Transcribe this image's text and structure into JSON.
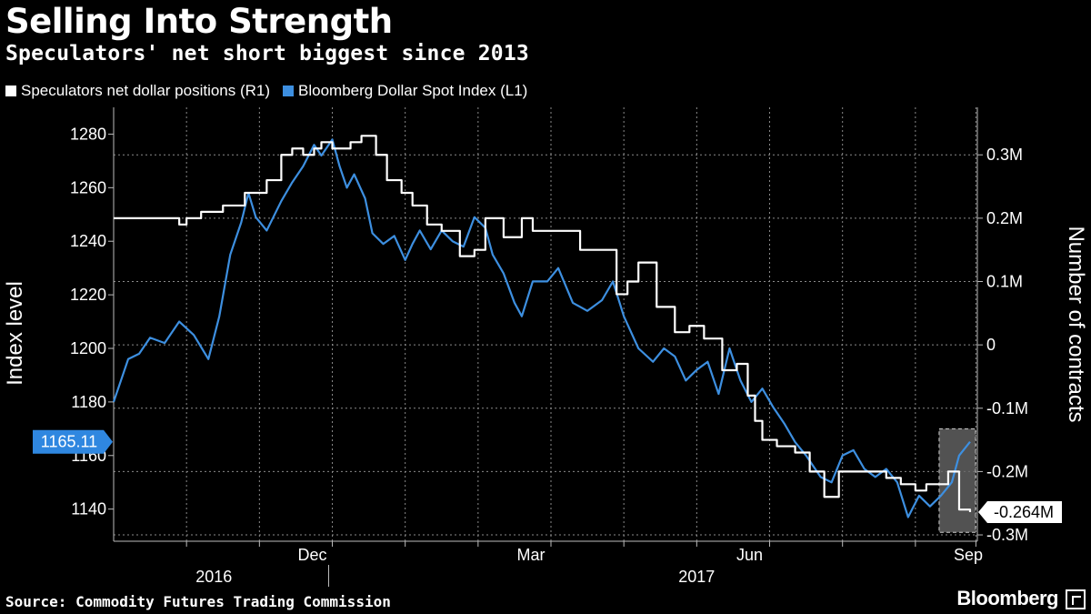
{
  "chart_data": {
    "type": "line",
    "title": "Selling Into Strength",
    "subtitle": "Speculators' net short biggest since 2013",
    "source": "Source: Commodity Futures Trading Commission",
    "brand": "Bloomberg",
    "colors": {
      "background": "#000000",
      "series_usd": "#ffffff",
      "series_index": "#3d8fe0"
    },
    "legend": [
      {
        "name": "Speculators net dollar positions (R1)",
        "color": "#ffffff"
      },
      {
        "name": "Bloomberg Dollar Spot Index (L1)",
        "color": "#3d8fe0"
      }
    ],
    "left_axis": {
      "label": "Index level",
      "ylim": [
        1128,
        1290
      ],
      "ticks": [
        "1140",
        "1160",
        "1180",
        "1200",
        "1220",
        "1240",
        "1260",
        "1280"
      ]
    },
    "right_axis": {
      "label": "Number of contracts",
      "ylim": [
        -0.31,
        0.375
      ],
      "ticks": [
        {
          "v": 0.3,
          "t": "0.3M"
        },
        {
          "v": 0.2,
          "t": "0.2M"
        },
        {
          "v": 0.1,
          "t": "0.1M"
        },
        {
          "v": 0,
          "t": "0"
        },
        {
          "v": -0.1,
          "t": "-0.1M"
        },
        {
          "v": -0.2,
          "t": "-0.2M"
        },
        {
          "v": -0.3,
          "t": "-0.3M"
        }
      ]
    },
    "x_range": [
      0,
      11.85
    ],
    "x_ticks": [
      {
        "m": 3,
        "t": "Dec"
      },
      {
        "m": 6,
        "t": "Mar"
      },
      {
        "m": 9,
        "t": "Jun"
      },
      {
        "m": 12,
        "t": "Sep"
      }
    ],
    "x_gridlines": [
      1,
      2,
      3,
      4,
      5,
      6,
      7,
      8,
      9,
      10,
      11,
      11.83
    ],
    "years": [
      {
        "m": 1.5,
        "t": "2016"
      },
      {
        "m": 7.5,
        "t": "2017"
      }
    ],
    "year_divider": 2.95,
    "series": [
      {
        "name": "Bloomberg Dollar Spot Index (L1)",
        "axis": "left",
        "x": [
          0,
          0.2,
          0.35,
          0.5,
          0.7,
          0.9,
          1.1,
          1.3,
          1.45,
          1.6,
          1.75,
          1.85,
          1.95,
          2.1,
          2.3,
          2.45,
          2.6,
          2.75,
          2.85,
          3.0,
          3.1,
          3.2,
          3.3,
          3.45,
          3.55,
          3.7,
          3.85,
          4.0,
          4.1,
          4.2,
          4.35,
          4.5,
          4.65,
          4.8,
          4.95,
          5.1,
          5.2,
          5.35,
          5.5,
          5.6,
          5.75,
          5.95,
          6.1,
          6.3,
          6.5,
          6.7,
          6.85,
          7.0,
          7.2,
          7.4,
          7.55,
          7.7,
          7.85,
          8.0,
          8.15,
          8.3,
          8.45,
          8.6,
          8.75,
          8.9,
          9.05,
          9.2,
          9.35,
          9.5,
          9.7,
          9.85,
          10.0,
          10.15,
          10.3,
          10.45,
          10.6,
          10.75,
          10.9,
          11.05,
          11.2,
          11.35,
          11.5,
          11.6,
          11.75
        ],
        "values": [
          1180,
          1196,
          1198,
          1204,
          1202,
          1210,
          1205,
          1196,
          1212,
          1235,
          1247,
          1258,
          1249,
          1244,
          1255,
          1262,
          1268,
          1276,
          1272,
          1278,
          1268,
          1260,
          1265,
          1256,
          1243,
          1239,
          1242,
          1233,
          1239,
          1244,
          1237,
          1244,
          1240,
          1238,
          1249,
          1245,
          1235,
          1228,
          1217,
          1212,
          1225,
          1225,
          1230,
          1217,
          1214,
          1218,
          1225,
          1212,
          1200,
          1195,
          1200,
          1197,
          1188,
          1192,
          1195,
          1183,
          1200,
          1188,
          1180,
          1185,
          1178,
          1172,
          1165,
          1160,
          1152,
          1150,
          1160,
          1162,
          1155,
          1152,
          1155,
          1150,
          1137,
          1145,
          1141,
          1145,
          1150,
          1160,
          1165.11
        ]
      },
      {
        "name": "Speculators net dollar positions (R1)",
        "axis": "right",
        "x": [
          0,
          0.9,
          1.0,
          1.2,
          1.5,
          1.8,
          2.1,
          2.3,
          2.45,
          2.6,
          2.75,
          2.85,
          3.0,
          3.25,
          3.4,
          3.6,
          3.75,
          3.95,
          4.1,
          4.3,
          4.5,
          4.75,
          4.95,
          5.1,
          5.35,
          5.6,
          5.75,
          6.1,
          6.4,
          6.9,
          7.05,
          7.2,
          7.45,
          7.7,
          7.9,
          8.1,
          8.35,
          8.55,
          8.7,
          8.8,
          8.9,
          9.1,
          9.35,
          9.55,
          9.75,
          9.95,
          10.3,
          10.6,
          10.8,
          11.0,
          11.15,
          11.3,
          11.45,
          11.6,
          11.75
        ],
        "values": [
          0.2,
          0.19,
          0.2,
          0.21,
          0.22,
          0.24,
          0.26,
          0.3,
          0.31,
          0.3,
          0.31,
          0.32,
          0.31,
          0.32,
          0.33,
          0.3,
          0.26,
          0.24,
          0.22,
          0.19,
          0.18,
          0.14,
          0.15,
          0.2,
          0.17,
          0.2,
          0.18,
          0.18,
          0.15,
          0.08,
          0.1,
          0.13,
          0.06,
          0.02,
          0.03,
          0.01,
          -0.04,
          -0.03,
          -0.08,
          -0.12,
          -0.15,
          -0.16,
          -0.17,
          -0.2,
          -0.24,
          -0.2,
          -0.2,
          -0.21,
          -0.22,
          -0.23,
          -0.22,
          -0.22,
          -0.2,
          -0.26,
          -0.264
        ]
      }
    ],
    "last_value_left": "1165.11",
    "last_value_right": "-0.264M"
  }
}
